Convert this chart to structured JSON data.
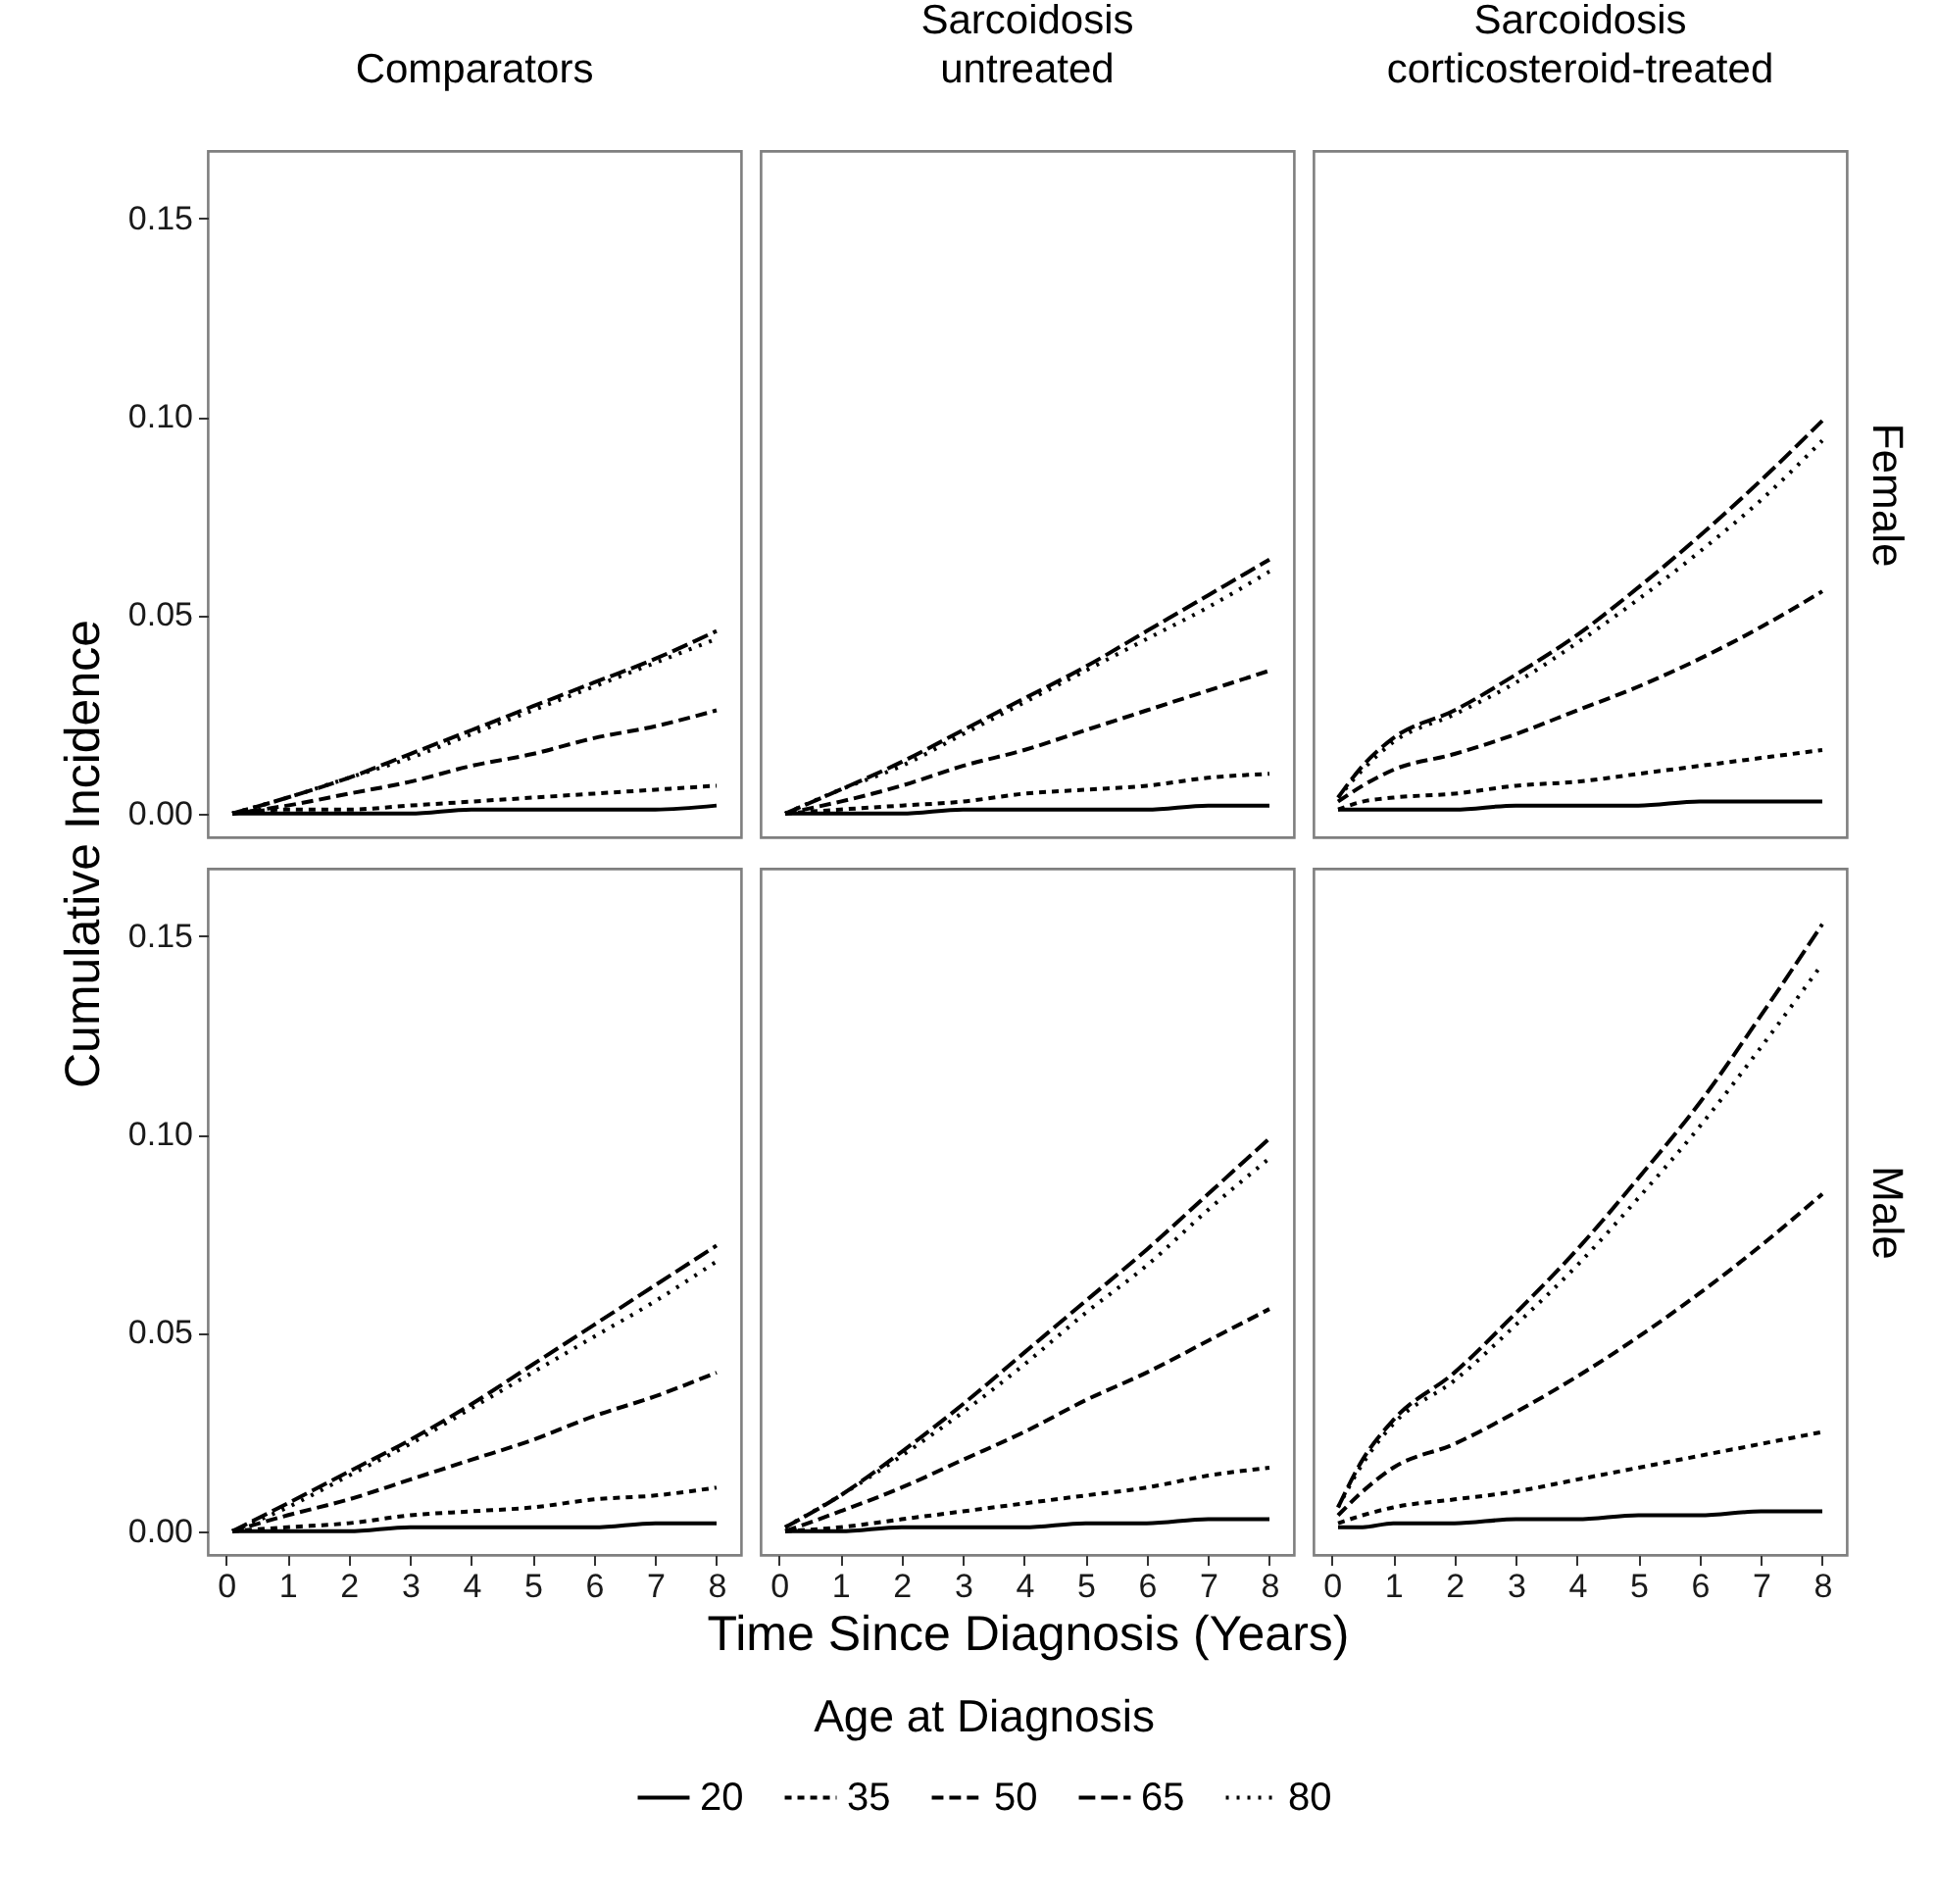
{
  "chart_data": [
    {
      "type": "line",
      "title": "Comparators",
      "x": [
        0.1,
        1,
        2,
        3,
        4,
        5,
        6,
        7,
        8
      ],
      "xlim": [
        -0.3,
        8.4
      ],
      "ylim": [
        -0.006,
        0.167
      ],
      "xticks": [
        0,
        1,
        2,
        3,
        4,
        5,
        6,
        7,
        8
      ],
      "yticks": [
        {
          "value": 0,
          "label": "0.00"
        },
        {
          "value": 0.05,
          "label": "0.05"
        },
        {
          "value": 0.1,
          "label": "0.10"
        },
        {
          "value": 0.15,
          "label": "0.15"
        }
      ],
      "tick_labels": "y",
      "series": [
        {
          "color": "#000000",
          "line_style": "solid",
          "values": [
            0,
            0,
            0,
            0,
            0.001,
            0.001,
            0.001,
            0.001,
            0.002
          ]
        },
        {
          "color": "#000000",
          "line_style": "dashed",
          "values": [
            0,
            0.001,
            0.001,
            0.002,
            0.003,
            0.004,
            0.005,
            0.006,
            0.007
          ]
        },
        {
          "color": "#000000",
          "line_style": "dashed",
          "values": [
            0,
            0.002,
            0.005,
            0.008,
            0.012,
            0.015,
            0.019,
            0.022,
            0.026
          ]
        },
        {
          "color": "#000000",
          "line_style": "dashed",
          "values": [
            0,
            0.004,
            0.009,
            0.015,
            0.021,
            0.027,
            0.033,
            0.039,
            0.046
          ]
        },
        {
          "color": "#000000",
          "line_style": "dotted",
          "values": [
            0,
            0.004,
            0.009,
            0.014,
            0.02,
            0.026,
            0.032,
            0.038,
            0.044
          ]
        }
      ]
    },
    {
      "type": "line",
      "title": "Sarcoidosis untreated",
      "x": [
        0.1,
        1,
        2,
        3,
        4,
        5,
        6,
        7,
        8
      ],
      "xlim": [
        -0.3,
        8.4
      ],
      "ylim": [
        -0.006,
        0.167
      ],
      "xticks": [
        0,
        1,
        2,
        3,
        4,
        5,
        6,
        7,
        8
      ],
      "tick_labels": false,
      "series": [
        {
          "color": "#000000",
          "line_style": "solid",
          "values": [
            0,
            0,
            0,
            0.001,
            0.001,
            0.001,
            0.001,
            0.002,
            0.002
          ]
        },
        {
          "color": "#000000",
          "line_style": "dashed",
          "values": [
            0,
            0.001,
            0.002,
            0.003,
            0.005,
            0.006,
            0.007,
            0.009,
            0.01
          ]
        },
        {
          "color": "#000000",
          "line_style": "dashed",
          "values": [
            0,
            0.003,
            0.007,
            0.012,
            0.016,
            0.021,
            0.026,
            0.031,
            0.036
          ]
        },
        {
          "color": "#000000",
          "line_style": "dashed",
          "values": [
            0,
            0.006,
            0.013,
            0.021,
            0.029,
            0.037,
            0.046,
            0.055,
            0.064
          ]
        },
        {
          "color": "#000000",
          "line_style": "dotted",
          "values": [
            0,
            0.006,
            0.012,
            0.02,
            0.028,
            0.036,
            0.044,
            0.052,
            0.061
          ]
        }
      ]
    },
    {
      "type": "line",
      "title": "Sarcoidosis corticosteroid-treated",
      "y2label": "Female",
      "x": [
        0.1,
        0.5,
        1,
        2,
        3,
        4,
        5,
        6,
        7,
        8
      ],
      "xlim": [
        -0.3,
        8.4
      ],
      "ylim": [
        -0.006,
        0.167
      ],
      "xticks": [
        0,
        1,
        2,
        3,
        4,
        5,
        6,
        7,
        8
      ],
      "tick_labels": false,
      "series": [
        {
          "color": "#000000",
          "line_style": "solid",
          "values": [
            0.001,
            0.001,
            0.001,
            0.001,
            0.002,
            0.002,
            0.002,
            0.003,
            0.003,
            0.003
          ]
        },
        {
          "color": "#000000",
          "line_style": "dashed",
          "values": [
            0.001,
            0.003,
            0.004,
            0.005,
            0.007,
            0.008,
            0.01,
            0.012,
            0.014,
            0.016
          ]
        },
        {
          "color": "#000000",
          "line_style": "dashed",
          "values": [
            0.003,
            0.007,
            0.011,
            0.015,
            0.02,
            0.026,
            0.032,
            0.039,
            0.047,
            0.056
          ]
        },
        {
          "color": "#000000",
          "line_style": "dashed",
          "values": [
            0.004,
            0.012,
            0.019,
            0.026,
            0.035,
            0.045,
            0.057,
            0.07,
            0.084,
            0.099
          ]
        },
        {
          "color": "#000000",
          "line_style": "dotted",
          "values": [
            0.004,
            0.011,
            0.018,
            0.025,
            0.033,
            0.043,
            0.054,
            0.066,
            0.079,
            0.094
          ]
        }
      ]
    },
    {
      "type": "line",
      "ylabel": "Cumulative Incidence",
      "x": [
        0.1,
        1,
        2,
        3,
        4,
        5,
        6,
        7,
        8
      ],
      "xlim": [
        -0.3,
        8.4
      ],
      "ylim": [
        -0.006,
        0.167
      ],
      "xticks": [
        0,
        1,
        2,
        3,
        4,
        5,
        6,
        7,
        8
      ],
      "yticks": [
        {
          "value": 0,
          "label": "0.00"
        },
        {
          "value": 0.05,
          "label": "0.05"
        },
        {
          "value": 0.1,
          "label": "0.10"
        },
        {
          "value": 0.15,
          "label": "0.15"
        }
      ],
      "series": [
        {
          "color": "#000000",
          "line_style": "solid",
          "values": [
            0,
            0,
            0,
            0.001,
            0.001,
            0.001,
            0.001,
            0.002,
            0.002
          ]
        },
        {
          "color": "#000000",
          "line_style": "dashed",
          "values": [
            0,
            0.001,
            0.002,
            0.004,
            0.005,
            0.006,
            0.008,
            0.009,
            0.011
          ]
        },
        {
          "color": "#000000",
          "line_style": "dashed",
          "values": [
            0,
            0.004,
            0.008,
            0.013,
            0.018,
            0.023,
            0.029,
            0.034,
            0.04
          ]
        },
        {
          "color": "#000000",
          "line_style": "dashed",
          "values": [
            0,
            0.007,
            0.015,
            0.023,
            0.032,
            0.042,
            0.052,
            0.062,
            0.072
          ]
        },
        {
          "color": "#000000",
          "line_style": "dotted",
          "values": [
            0,
            0.006,
            0.014,
            0.022,
            0.031,
            0.04,
            0.049,
            0.058,
            0.068
          ]
        }
      ]
    },
    {
      "type": "line",
      "xlabel": "Time Since Diagnosis (Years)",
      "legend_title": "Age at Diagnosis",
      "legend": "bottom",
      "x": [
        0.1,
        1,
        2,
        3,
        4,
        5,
        6,
        7,
        8
      ],
      "xlim": [
        -0.3,
        8.4
      ],
      "ylim": [
        -0.006,
        0.167
      ],
      "xticks": [
        0,
        1,
        2,
        3,
        4,
        5,
        6,
        7,
        8
      ],
      "tick_labels": "x",
      "series": [
        {
          "name": "20",
          "color": "#000000",
          "line_style": "solid",
          "values": [
            0,
            0,
            0.001,
            0.001,
            0.001,
            0.002,
            0.002,
            0.003,
            0.003
          ]
        },
        {
          "name": "35",
          "color": "#000000",
          "line_style": "dashed",
          "values": [
            0,
            0.001,
            0.003,
            0.005,
            0.007,
            0.009,
            0.011,
            0.014,
            0.016
          ]
        },
        {
          "name": "50",
          "color": "#000000",
          "line_style": "dashed",
          "values": [
            0,
            0.005,
            0.011,
            0.018,
            0.025,
            0.033,
            0.04,
            0.048,
            0.056
          ]
        },
        {
          "name": "65",
          "color": "#000000",
          "line_style": "dashed",
          "values": [
            0.001,
            0.009,
            0.02,
            0.032,
            0.045,
            0.058,
            0.071,
            0.085,
            0.099
          ]
        },
        {
          "name": "80",
          "color": "#000000",
          "line_style": "dotted",
          "values": [
            0.001,
            0.009,
            0.019,
            0.03,
            0.042,
            0.055,
            0.067,
            0.081,
            0.094
          ]
        }
      ]
    },
    {
      "type": "line",
      "y2label": "Male",
      "x": [
        0.1,
        0.5,
        1,
        2,
        3,
        4,
        5,
        6,
        7,
        8
      ],
      "xlim": [
        -0.3,
        8.4
      ],
      "ylim": [
        -0.006,
        0.167
      ],
      "xticks": [
        0,
        1,
        2,
        3,
        4,
        5,
        6,
        7,
        8
      ],
      "tick_labels": "x",
      "series": [
        {
          "color": "#000000",
          "line_style": "solid",
          "values": [
            0.001,
            0.001,
            0.002,
            0.002,
            0.003,
            0.003,
            0.004,
            0.004,
            0.005,
            0.005
          ]
        },
        {
          "color": "#000000",
          "line_style": "dashed",
          "values": [
            0.002,
            0.004,
            0.006,
            0.008,
            0.01,
            0.013,
            0.016,
            0.019,
            0.022,
            0.025
          ]
        },
        {
          "color": "#000000",
          "line_style": "dashed",
          "values": [
            0.004,
            0.01,
            0.016,
            0.022,
            0.03,
            0.039,
            0.049,
            0.06,
            0.072,
            0.085
          ]
        },
        {
          "color": "#000000",
          "line_style": "dashed",
          "values": [
            0.006,
            0.018,
            0.028,
            0.04,
            0.055,
            0.071,
            0.089,
            0.108,
            0.13,
            0.153
          ]
        },
        {
          "color": "#000000",
          "line_style": "dotted",
          "values": [
            0.006,
            0.017,
            0.027,
            0.038,
            0.052,
            0.067,
            0.084,
            0.102,
            0.122,
            0.143
          ]
        }
      ]
    }
  ]
}
